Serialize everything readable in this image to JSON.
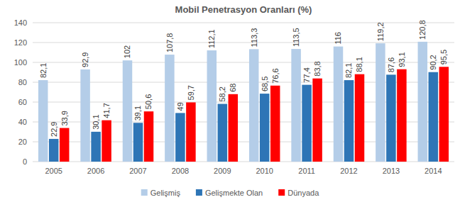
{
  "chart_data": {
    "type": "bar",
    "title": "Mobil Penetrasyon Oranları (%)",
    "categories": [
      "2005",
      "2006",
      "2007",
      "2008",
      "2009",
      "2010",
      "2011",
      "2012",
      "2013",
      "2014"
    ],
    "series": [
      {
        "name": "Gelişmiş",
        "color": "#b4cde8",
        "values": [
          82.1,
          92.9,
          102,
          107.8,
          112.1,
          113.3,
          113.5,
          116,
          119.2,
          120.8
        ],
        "value_labels": [
          "82,1",
          "92,9",
          "102",
          "107,8",
          "112,1",
          "113,3",
          "113,5",
          "116",
          "119,2",
          "120,8"
        ]
      },
      {
        "name": "Gelişmekte Olan",
        "color": "#2e75b6",
        "values": [
          22.9,
          30.1,
          39.1,
          49,
          58.2,
          68.5,
          77.4,
          82.1,
          87.6,
          90.2
        ],
        "value_labels": [
          "22,9",
          "30,1",
          "39,1",
          "49",
          "58,2",
          "68,5",
          "77,4",
          "82,1",
          "87,6",
          "90,2"
        ]
      },
      {
        "name": "Dünyada",
        "color": "#ff0000",
        "values": [
          33.9,
          41.7,
          50.6,
          59.7,
          68,
          76.6,
          83.8,
          88.1,
          93.1,
          95.5
        ],
        "value_labels": [
          "33,9",
          "41,7",
          "50,6",
          "59,7",
          "68",
          "76,6",
          "83,8",
          "88,1",
          "93,1",
          "95,5"
        ]
      }
    ],
    "ylim": [
      0,
      140
    ],
    "yticks": [
      0,
      20,
      40,
      60,
      80,
      100,
      120,
      140
    ],
    "grid": true,
    "legend": "bottom",
    "data_labels": true
  }
}
